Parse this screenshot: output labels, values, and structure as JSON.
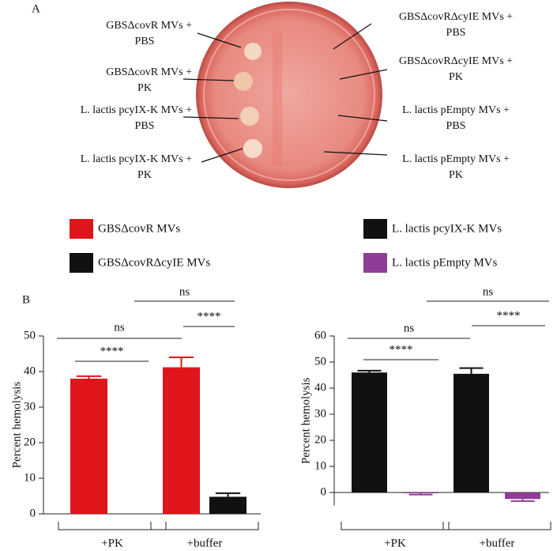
{
  "panel_labels": [
    "A",
    "B"
  ],
  "plate_labels": [
    {
      "lines": [
        "GBSΔcovR MVs +",
        "PBS"
      ]
    },
    {
      "lines": [
        "GBSΔcovR MVs +",
        "PK"
      ]
    },
    {
      "lines": [
        "L. lactis pcyIX-K MVs +",
        "PBS"
      ]
    },
    {
      "lines": [
        "L. lactis pcyIX-K MVs +",
        "PK"
      ]
    },
    {
      "lines": [
        "GBSΔcovRΔcyIE MVs +",
        "PBS"
      ]
    },
    {
      "lines": [
        "GBSΔcovRΔcyIE MVs +",
        "PK"
      ]
    },
    {
      "lines": [
        "L. lactis pEmpty MVs +",
        "PBS"
      ]
    },
    {
      "lines": [
        "L. lactis pEmpty MVs +",
        "PK"
      ]
    }
  ],
  "chart_data": [
    {
      "type": "bar",
      "y_label": "Percent hemolysis",
      "categories": [
        "+PK",
        "+buffer"
      ],
      "series": [
        {
          "name": "GBSΔcovR MVs",
          "color": "#e0151b",
          "values": [
            38,
            41.2
          ],
          "errors": [
            0.7,
            2.8
          ]
        },
        {
          "name": "GBSΔcovRΔcyIE MVs",
          "color": "#111111",
          "values": [
            null,
            4.8
          ],
          "errors": [
            null,
            1
          ]
        }
      ],
      "ylim": [
        0,
        50
      ],
      "yticks": [
        0,
        10,
        20,
        30,
        40,
        50
      ],
      "annotations": [
        "****",
        "ns",
        "****",
        "ns"
      ]
    },
    {
      "type": "bar",
      "y_label": "Percent hemolysis",
      "categories": [
        "+PK",
        "+buffer"
      ],
      "series": [
        {
          "name": "L. lactis pcyIX-K MVs",
          "color": "#111111",
          "values": [
            46,
            45.5
          ],
          "errors": [
            0.7,
            2.2
          ]
        },
        {
          "name": "L. lactis pEmpty MVs",
          "color": "#8e3d96",
          "values": [
            -0.3,
            -2.5
          ],
          "errors": [
            0.5,
            0.8
          ]
        }
      ],
      "ylim": [
        -5,
        60
      ],
      "yticks": [
        0,
        10,
        20,
        30,
        40,
        50,
        60
      ],
      "annotations": [
        "****",
        "ns",
        "****",
        "ns"
      ]
    }
  ]
}
